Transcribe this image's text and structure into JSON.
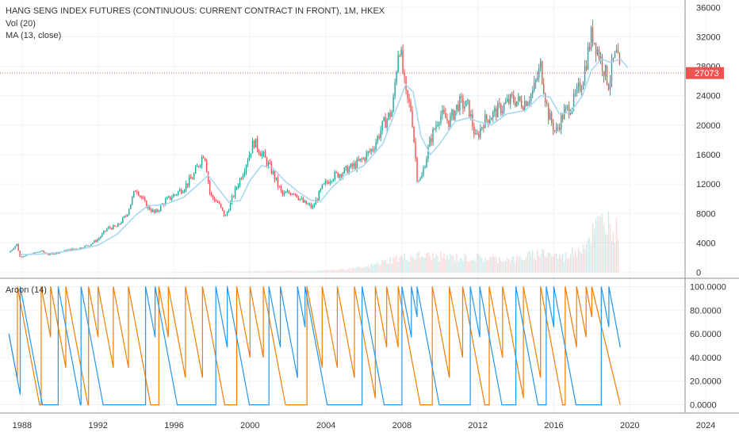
{
  "header": {
    "title": "HANG SENG INDEX FUTURES (CONTINUOUS: CURRENT CONTRACT IN FRONT), 1M, HKEX",
    "vol_label": "Vol (20)",
    "ma_label": "MA (13, close)"
  },
  "aroon_label": "Aroon (14)",
  "colors": {
    "up": "#26a69a",
    "down": "#ef5350",
    "ma": "#a8d8f0",
    "aroon_up": "#f57c00",
    "aroon_down": "#2196f3",
    "grid": "#f0f3fa",
    "price_line": "#ef5350",
    "axis_text": "#333333"
  },
  "chart_data": [
    {
      "type": "candlestick",
      "interval": "1M",
      "x_axis": {
        "ticks": [
          "1988",
          "1992",
          "1996",
          "2000",
          "2004",
          "2008",
          "2012",
          "2016",
          "2020",
          "2024"
        ],
        "range": [
          1986.5,
          2024.5
        ]
      },
      "y_axis": {
        "ticks": [
          "0",
          "4000",
          "8000",
          "12000",
          "16000",
          "20000",
          "24000",
          "28000",
          "32000",
          "36000"
        ],
        "range": [
          -800,
          37000
        ]
      },
      "last_price": 27073,
      "last_price_label": "27073",
      "series": [
        {
          "name": "MA (13, close)"
        },
        {
          "name": "Vol (20)"
        }
      ],
      "price_path": [
        [
          1987.3,
          2700
        ],
        [
          1987.75,
          3900
        ],
        [
          1987.85,
          2100
        ],
        [
          1988.5,
          2500
        ],
        [
          1989.0,
          2900
        ],
        [
          1989.4,
          2400
        ],
        [
          1989.9,
          2700
        ],
        [
          1990.5,
          3100
        ],
        [
          1991.0,
          3300
        ],
        [
          1991.5,
          3700
        ],
        [
          1992.0,
          4500
        ],
        [
          1992.5,
          6000
        ],
        [
          1993.0,
          6200
        ],
        [
          1993.5,
          7800
        ],
        [
          1994.0,
          11500
        ],
        [
          1994.5,
          9200
        ],
        [
          1995.0,
          8000
        ],
        [
          1995.5,
          9600
        ],
        [
          1996.0,
          10500
        ],
        [
          1996.5,
          11500
        ],
        [
          1997.0,
          13000
        ],
        [
          1997.6,
          16400
        ],
        [
          1997.9,
          10500
        ],
        [
          1998.3,
          9500
        ],
        [
          1998.7,
          7500
        ],
        [
          1999.2,
          11000
        ],
        [
          1999.6,
          13500
        ],
        [
          2000.2,
          17800
        ],
        [
          2000.7,
          15800
        ],
        [
          2001.2,
          13500
        ],
        [
          2001.7,
          10500
        ],
        [
          2002.3,
          11000
        ],
        [
          2002.8,
          9500
        ],
        [
          2003.3,
          8800
        ],
        [
          2003.8,
          11500
        ],
        [
          2004.3,
          13000
        ],
        [
          2004.8,
          13500
        ],
        [
          2005.5,
          14500
        ],
        [
          2006.0,
          15500
        ],
        [
          2006.5,
          17000
        ],
        [
          2007.0,
          20000
        ],
        [
          2007.5,
          22000
        ],
        [
          2007.85,
          31500
        ],
        [
          2008.2,
          24000
        ],
        [
          2008.5,
          22000
        ],
        [
          2008.8,
          13000
        ],
        [
          2009.0,
          12500
        ],
        [
          2009.5,
          18000
        ],
        [
          2010.0,
          21500
        ],
        [
          2010.5,
          20500
        ],
        [
          2011.0,
          23000
        ],
        [
          2011.5,
          22500
        ],
        [
          2011.9,
          18000
        ],
        [
          2012.3,
          20500
        ],
        [
          2012.8,
          21500
        ],
        [
          2013.3,
          22500
        ],
        [
          2013.8,
          23500
        ],
        [
          2014.4,
          23000
        ],
        [
          2014.9,
          24500
        ],
        [
          2015.3,
          28000
        ],
        [
          2015.7,
          21500
        ],
        [
          2016.1,
          19000
        ],
        [
          2016.5,
          21500
        ],
        [
          2017.0,
          23000
        ],
        [
          2017.5,
          26000
        ],
        [
          2018.0,
          32500
        ],
        [
          2018.4,
          29500
        ],
        [
          2018.9,
          25500
        ],
        [
          2019.1,
          28500
        ],
        [
          2019.3,
          29500
        ],
        [
          2019.5,
          27073
        ]
      ],
      "ma_path": [
        [
          1987.9,
          2400
        ],
        [
          1989.0,
          2500
        ],
        [
          1990.0,
          2750
        ],
        [
          1991.0,
          3100
        ],
        [
          1992.0,
          3700
        ],
        [
          1993.0,
          5200
        ],
        [
          1994.0,
          7800
        ],
        [
          1994.6,
          9000
        ],
        [
          1995.5,
          9200
        ],
        [
          1996.5,
          10200
        ],
        [
          1997.3,
          12000
        ],
        [
          1997.8,
          13200
        ],
        [
          1998.3,
          11500
        ],
        [
          1998.9,
          9500
        ],
        [
          1999.5,
          9800
        ],
        [
          2000.0,
          12500
        ],
        [
          2000.6,
          14500
        ],
        [
          2001.2,
          14200
        ],
        [
          2001.8,
          12500
        ],
        [
          2002.5,
          11000
        ],
        [
          2003.2,
          9800
        ],
        [
          2003.7,
          9600
        ],
        [
          2004.3,
          11500
        ],
        [
          2005.0,
          13200
        ],
        [
          2006.0,
          14500
        ],
        [
          2007.0,
          17500
        ],
        [
          2007.6,
          21500
        ],
        [
          2008.2,
          25500
        ],
        [
          2008.6,
          24500
        ],
        [
          2009.0,
          18500
        ],
        [
          2009.5,
          16000
        ],
        [
          2010.0,
          17500
        ],
        [
          2010.8,
          20500
        ],
        [
          2011.5,
          21000
        ],
        [
          2012.0,
          20500
        ],
        [
          2012.7,
          20000
        ],
        [
          2013.5,
          21500
        ],
        [
          2014.5,
          22000
        ],
        [
          2015.3,
          24000
        ],
        [
          2015.8,
          23800
        ],
        [
          2016.3,
          21500
        ],
        [
          2016.9,
          21800
        ],
        [
          2017.5,
          24000
        ],
        [
          2018.0,
          27500
        ],
        [
          2018.5,
          29000
        ],
        [
          2019.0,
          28500
        ],
        [
          2019.5,
          29000
        ],
        [
          2019.9,
          27800
        ]
      ],
      "volume_profile": [
        [
          1995.8,
          0
        ],
        [
          2000.0,
          150
        ],
        [
          2004.0,
          300
        ],
        [
          2006.0,
          700
        ],
        [
          2007.8,
          2200
        ],
        [
          2009.0,
          2500
        ],
        [
          2011.5,
          2200
        ],
        [
          2014.0,
          2000
        ],
        [
          2015.5,
          3000
        ],
        [
          2016.5,
          2200
        ],
        [
          2017.5,
          4000
        ],
        [
          2018.3,
          7000
        ],
        [
          2018.8,
          8000
        ],
        [
          2019.4,
          6000
        ]
      ]
    },
    {
      "type": "line",
      "name": "Aroon (14)",
      "y_axis": {
        "ticks": [
          "0.0000",
          "20.0000",
          "40.0000",
          "60.0000",
          "80.0000",
          "100.0000"
        ],
        "range": [
          -7,
          107
        ]
      },
      "series": [
        {
          "name": "Aroon Up"
        },
        {
          "name": "Aroon Down"
        }
      ],
      "aroon_up_events": [
        [
          1987.75,
          100
        ],
        [
          1989.0,
          100
        ],
        [
          1989.5,
          100
        ],
        [
          1990.3,
          100
        ],
        [
          1991.5,
          100
        ],
        [
          1992.0,
          100
        ],
        [
          1992.8,
          100
        ],
        [
          1993.6,
          100
        ],
        [
          1995.2,
          100
        ],
        [
          1995.7,
          100
        ],
        [
          1996.6,
          100
        ],
        [
          1997.5,
          100
        ],
        [
          1999.3,
          100
        ],
        [
          2000.0,
          100
        ],
        [
          2000.7,
          100
        ],
        [
          2003.0,
          100
        ],
        [
          2003.8,
          100
        ],
        [
          2004.6,
          100
        ],
        [
          2005.5,
          100
        ],
        [
          2006.6,
          100
        ],
        [
          2007.2,
          100
        ],
        [
          2007.8,
          100
        ],
        [
          2009.6,
          100
        ],
        [
          2010.5,
          100
        ],
        [
          2011.2,
          100
        ],
        [
          2012.6,
          100
        ],
        [
          2013.3,
          100
        ],
        [
          2014.4,
          100
        ],
        [
          2015.3,
          100
        ],
        [
          2016.6,
          100
        ],
        [
          2017.2,
          100
        ],
        [
          2017.7,
          100
        ],
        [
          2018.0,
          100
        ]
      ],
      "aroon_down_events": [
        [
          1987.9,
          100
        ],
        [
          1989.9,
          100
        ],
        [
          1991.1,
          100
        ],
        [
          1994.5,
          100
        ],
        [
          1995.0,
          100
        ],
        [
          1998.2,
          100
        ],
        [
          1998.8,
          100
        ],
        [
          2001.0,
          100
        ],
        [
          2001.6,
          100
        ],
        [
          2002.5,
          100
        ],
        [
          2002.9,
          100
        ],
        [
          2005.9,
          100
        ],
        [
          2008.0,
          100
        ],
        [
          2008.5,
          100
        ],
        [
          2008.8,
          100
        ],
        [
          2011.6,
          100
        ],
        [
          2012.1,
          100
        ],
        [
          2014.0,
          100
        ],
        [
          2015.6,
          100
        ],
        [
          2016.0,
          100
        ],
        [
          2018.5,
          100
        ],
        [
          2018.9,
          100
        ]
      ]
    }
  ]
}
